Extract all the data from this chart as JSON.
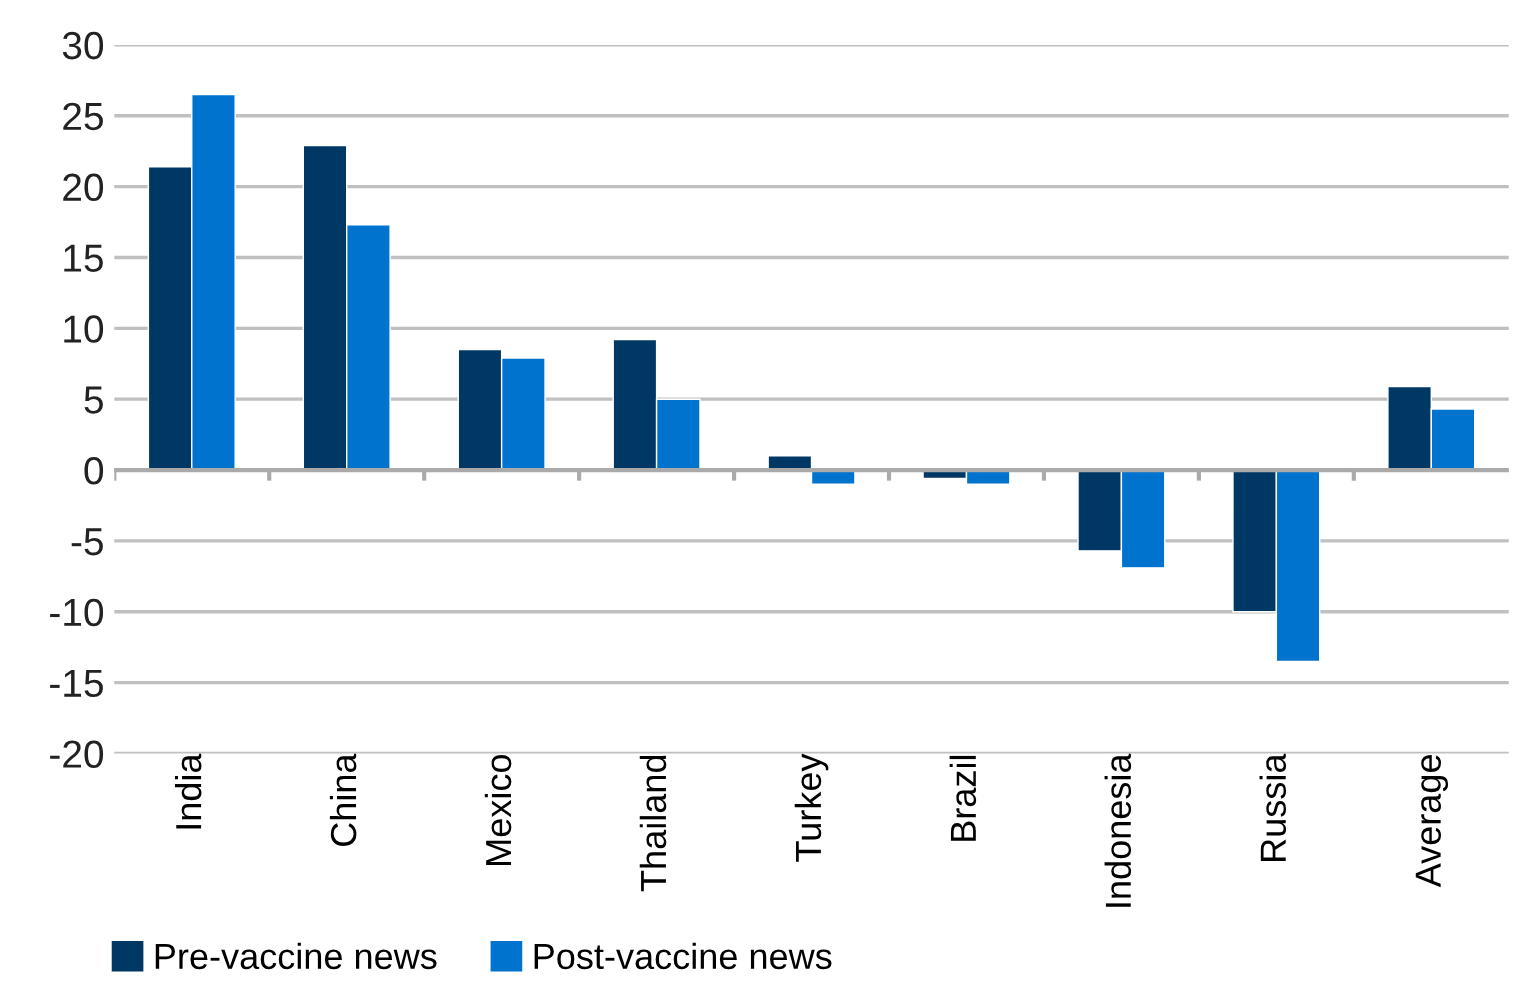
{
  "chart_data": {
    "type": "bar",
    "categories": [
      "India",
      "China",
      "Mexico",
      "Thailand",
      "Turkey",
      "Brazil",
      "Indonesia",
      "Russia",
      "Average"
    ],
    "series": [
      {
        "name": "Pre-vaccine news",
        "color": "#003865",
        "values": [
          21.4,
          22.9,
          8.5,
          9.2,
          1.0,
          -0.6,
          -5.7,
          -10.0,
          5.9
        ]
      },
      {
        "name": "Post-vaccine news",
        "color": "#0073cf",
        "values": [
          26.5,
          17.3,
          7.9,
          5.0,
          -1.0,
          -1.0,
          -6.9,
          -13.5,
          4.3
        ]
      }
    ],
    "ylim": [
      -20,
      30
    ],
    "yticks": [
      -20,
      -15,
      -10,
      -5,
      0,
      5,
      10,
      15,
      20,
      25,
      30
    ],
    "grid": "y",
    "legend": "bottom left"
  }
}
